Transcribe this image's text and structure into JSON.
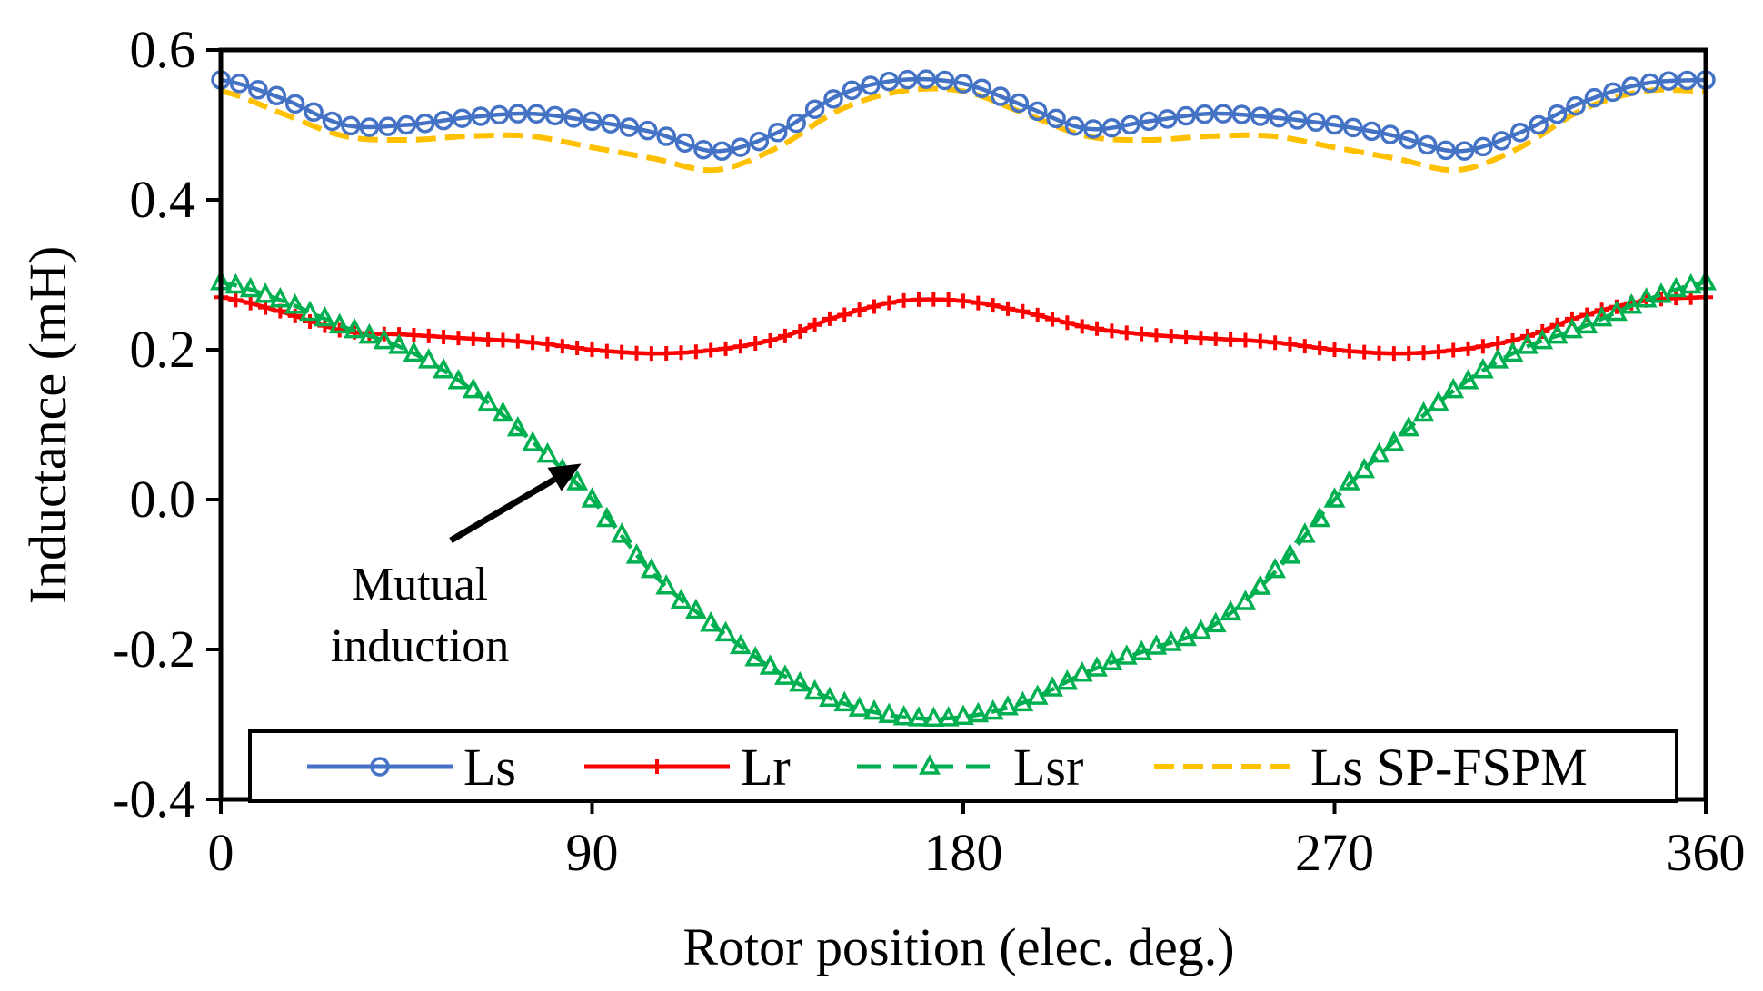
{
  "chart_data": {
    "type": "line",
    "title": "",
    "xlabel": "Rotor position (elec. deg.)",
    "ylabel": "Inductance (mH)",
    "xlim": [
      0,
      360
    ],
    "ylim": [
      -0.4,
      0.6
    ],
    "xticks": [
      0,
      90,
      180,
      270,
      360
    ],
    "xtick_labels": [
      "0",
      "90",
      "180",
      "270",
      "360"
    ],
    "yticks": [
      0.6,
      0.4,
      0.2,
      0.0,
      -0.2,
      -0.4
    ],
    "ytick_labels": [
      "0.6",
      "0.4",
      "0.2",
      "0.0",
      "-0.2",
      "-0.4"
    ],
    "grid": false,
    "legend_position": "bottom",
    "x": [
      0,
      15,
      30,
      45,
      60,
      75,
      90,
      105,
      120,
      135,
      150,
      165,
      180,
      195,
      210,
      225,
      240,
      255,
      270,
      285,
      300,
      315,
      330,
      345,
      360
    ],
    "series": [
      {
        "name": "Ls",
        "color": "#4472C4",
        "marker": "circle",
        "dash": "solid",
        "values": [
          0.56,
          0.535,
          0.5,
          0.5,
          0.51,
          0.515,
          0.505,
          0.49,
          0.465,
          0.49,
          0.54,
          0.56,
          0.555,
          0.525,
          0.495,
          0.505,
          0.515,
          0.51,
          0.5,
          0.485,
          0.465,
          0.49,
          0.53,
          0.555,
          0.56
        ]
      },
      {
        "name": "Lr",
        "color": "#FF0000",
        "marker": "plus",
        "dash": "solid",
        "values": [
          0.27,
          0.25,
          0.225,
          0.22,
          0.215,
          0.21,
          0.2,
          0.195,
          0.2,
          0.215,
          0.245,
          0.265,
          0.265,
          0.25,
          0.23,
          0.22,
          0.215,
          0.21,
          0.2,
          0.195,
          0.2,
          0.215,
          0.245,
          0.265,
          0.27
        ]
      },
      {
        "name": "Lsr",
        "color": "#00B050",
        "marker": "triangle",
        "dash": "dashed",
        "values": [
          0.29,
          0.265,
          0.23,
          0.2,
          0.15,
          0.08,
          0.0,
          -0.1,
          -0.17,
          -0.23,
          -0.27,
          -0.29,
          -0.29,
          -0.27,
          -0.23,
          -0.2,
          -0.17,
          -0.1,
          0.0,
          0.08,
          0.15,
          0.2,
          0.23,
          0.265,
          0.29
        ]
      },
      {
        "name": "Ls SP-FSPM",
        "color": "#FFC000",
        "marker": "none",
        "dash": "dashed",
        "values": [
          0.545,
          0.515,
          0.485,
          0.48,
          0.485,
          0.485,
          0.47,
          0.455,
          0.44,
          0.47,
          0.52,
          0.545,
          0.545,
          0.515,
          0.485,
          0.48,
          0.485,
          0.485,
          0.47,
          0.455,
          0.44,
          0.47,
          0.52,
          0.545,
          0.545
        ]
      }
    ],
    "annotations": [
      {
        "lines": [
          "Mutual",
          "induction"
        ],
        "points_to": {
          "x": 90,
          "y": 0.06
        }
      }
    ]
  }
}
